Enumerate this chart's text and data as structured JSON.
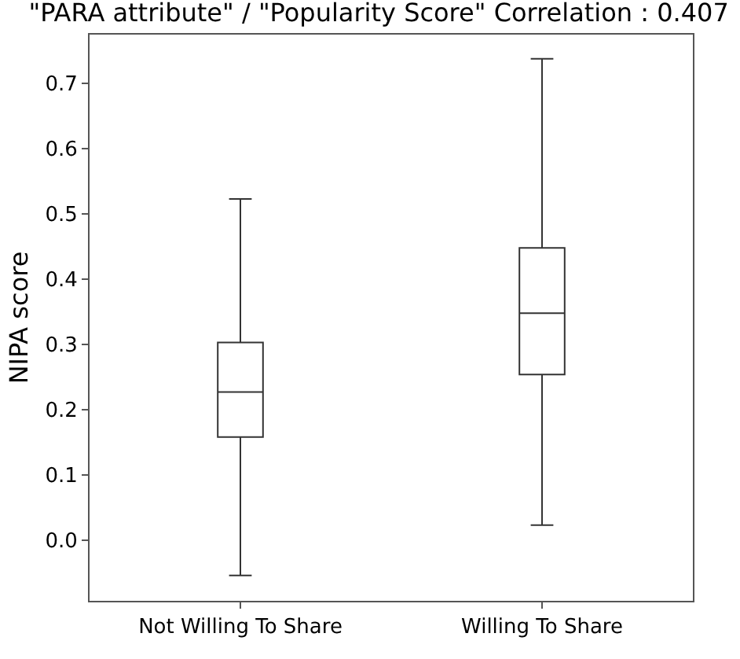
{
  "chart_data": {
    "type": "box",
    "title": "\"PARA attribute\" / \"Popularity Score\" Correlation : 0.407",
    "ylabel": "NIPA score",
    "categories": [
      "Not Willing To Share",
      "Willing To Share"
    ],
    "boxes": [
      {
        "low": -0.054,
        "q1": 0.158,
        "median": 0.227,
        "q3": 0.303,
        "high": 0.523
      },
      {
        "low": 0.023,
        "q1": 0.254,
        "median": 0.348,
        "q3": 0.448,
        "high": 0.738
      }
    ],
    "color": "#333333",
    "ylim": [
      -0.093,
      0.775
    ],
    "yticks": [
      {
        "value": 0,
        "label": "0.0"
      },
      0.1,
      0.2,
      0.3,
      0.4,
      0.5,
      0.6,
      0.7
    ]
  }
}
